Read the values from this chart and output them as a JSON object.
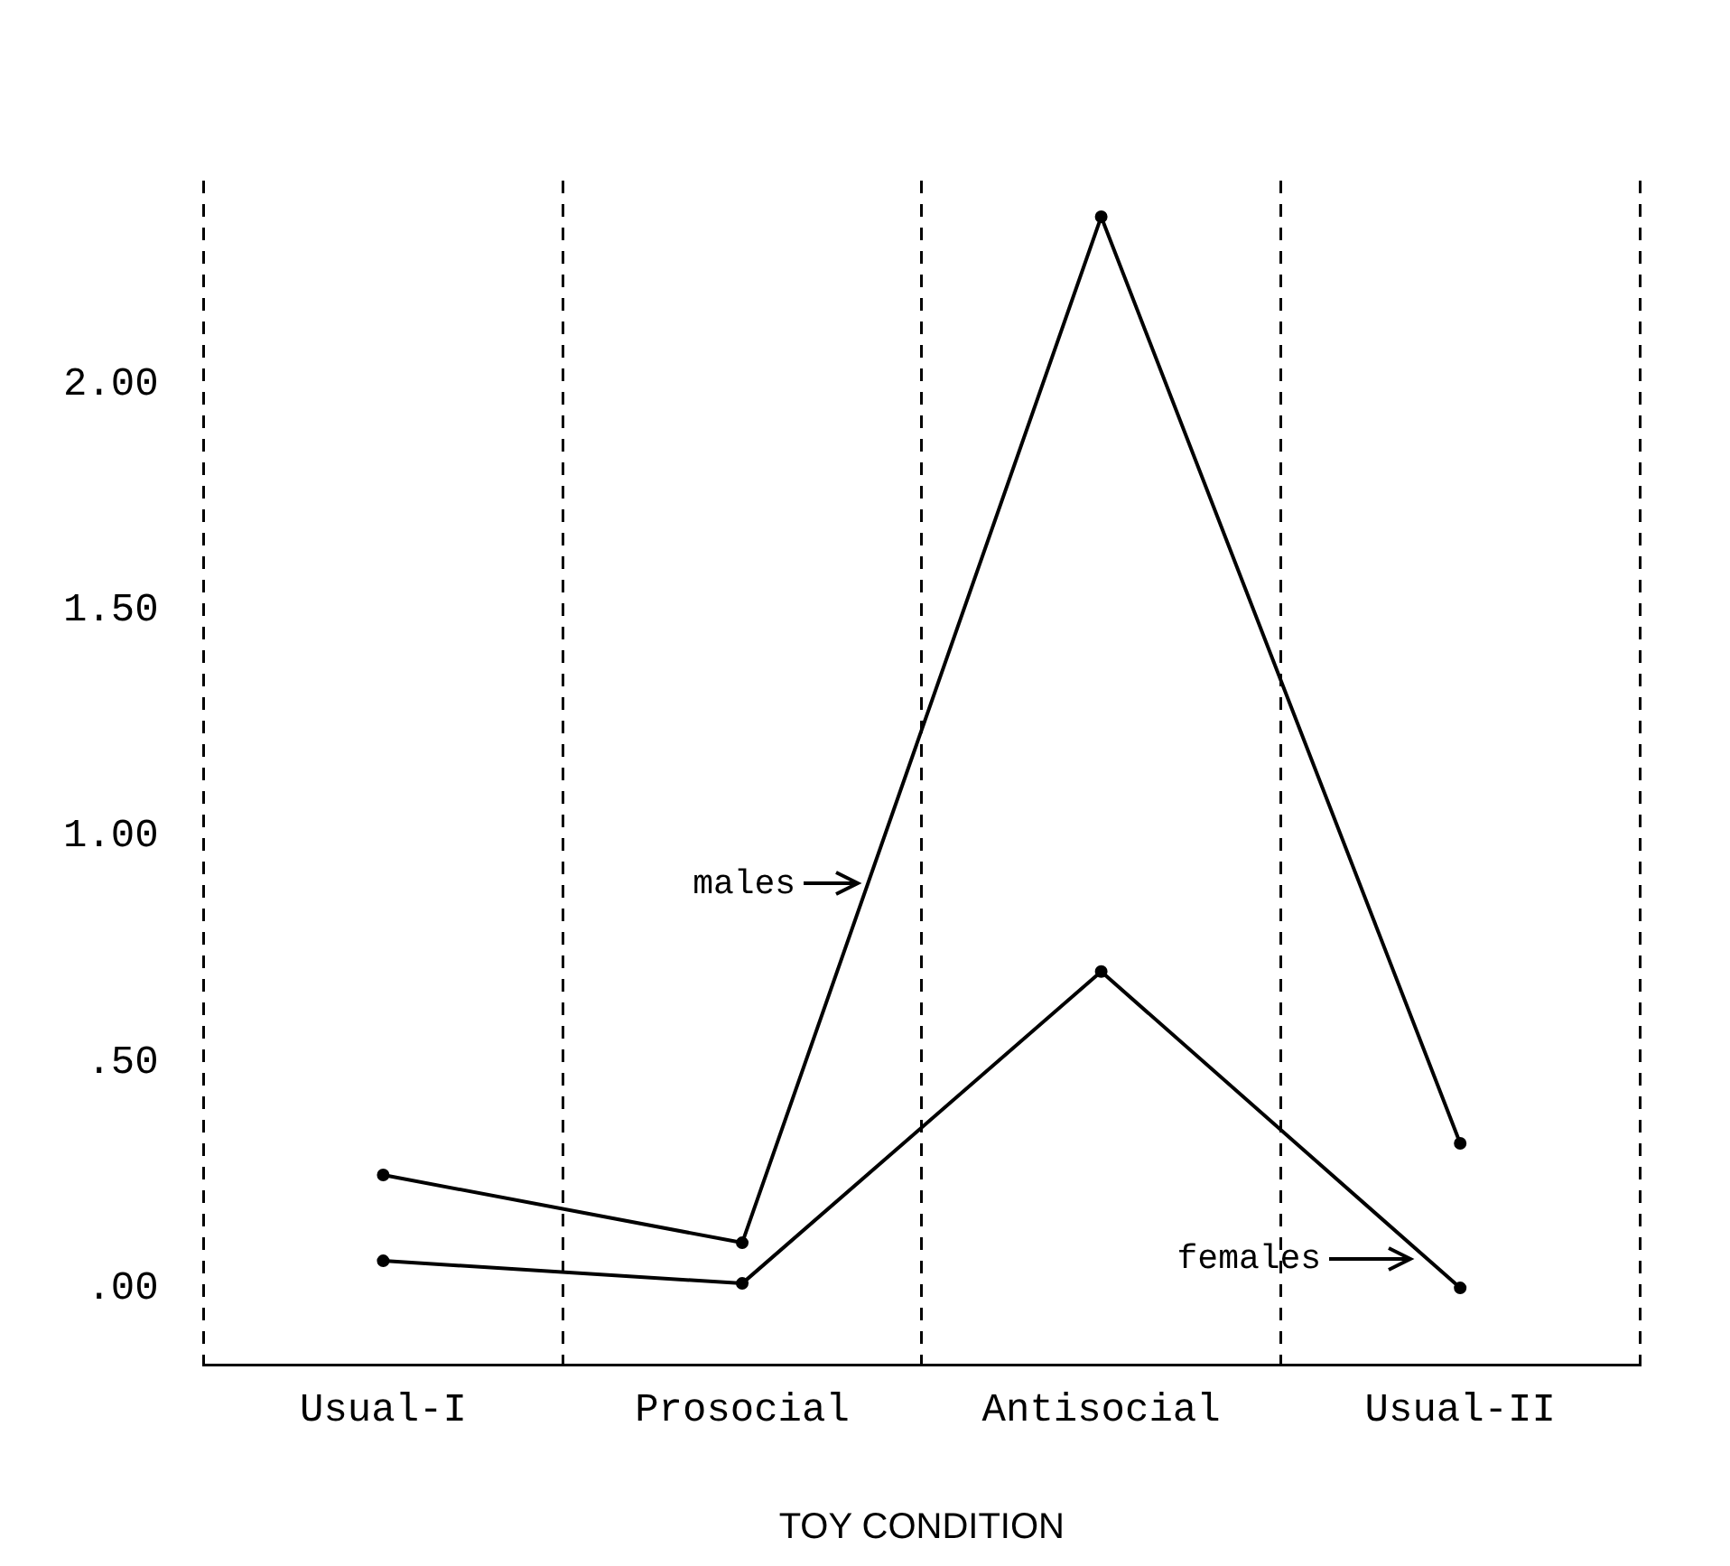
{
  "chart_data": {
    "type": "line",
    "xlabel": "TOY CONDITION",
    "categories": [
      "Usual-I",
      "Prosocial",
      "Antisocial",
      "Usual-II"
    ],
    "series": [
      {
        "color": "#000000",
        "values": [
          0.25,
          0.1,
          2.37,
          0.32
        ]
      },
      {
        "color": "#000000",
        "values": [
          0.06,
          0.01,
          0.7,
          0.0
        ]
      }
    ],
    "annotations": [
      "males",
      "females"
    ],
    "ylim": [
      -0.17,
      2.45
    ],
    "yticks": [
      {
        "value": 0,
        "label": ".00"
      },
      {
        "value": 0.5,
        "label": ".50"
      },
      {
        "value": 1,
        "label": "1.00"
      },
      {
        "value": 1.5,
        "label": "1.50"
      },
      {
        "value": 2,
        "label": "2.00"
      }
    ],
    "grid": "x",
    "legend": false,
    "marker": "circle",
    "line_style": "solid"
  }
}
